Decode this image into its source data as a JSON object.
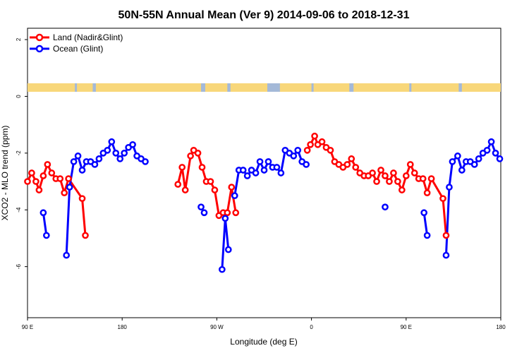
{
  "chart_data": {
    "type": "line",
    "title": "50N-55N Annual Mean (Ver 9)   2014-09-06 to 2018-12-31",
    "xlabel": "Longitude (deg E)",
    "ylabel": "XCO2 - MLO trend (ppm)",
    "x_tick_labels": [
      "90 E",
      "180",
      "90 W",
      "0",
      "90 E",
      "180"
    ],
    "x_tick_positions": [
      90,
      180,
      270,
      360,
      450,
      540
    ],
    "xlim": [
      90,
      540
    ],
    "y_ticks": [
      2,
      0,
      -2,
      -4,
      -6
    ],
    "y_tick_labels": [
      "2",
      "0",
      "-2",
      "-4",
      "-6"
    ],
    "ylim": [
      -7.8,
      2.4
    ],
    "grid": false,
    "legend_position": "top-left",
    "land_ocean_strip": {
      "land_color": "#F8D77A",
      "ocean_color": "#A4B9D8"
    },
    "series": [
      {
        "name": "Land (Nadir&Glint)",
        "color": "#ff0000",
        "segments": [
          [
            [
              90,
              -3.0
            ],
            [
              94,
              -2.7
            ],
            [
              98,
              -3.0
            ],
            [
              101,
              -3.3
            ],
            [
              105,
              -2.8
            ],
            [
              109,
              -2.4
            ],
            [
              113,
              -2.7
            ],
            [
              117,
              -2.9
            ],
            [
              121,
              -2.9
            ],
            [
              125,
              -3.4
            ],
            [
              129,
              -2.9
            ],
            [
              142,
              -3.6
            ],
            [
              145,
              -4.9
            ]
          ],
          [
            [
              233,
              -3.1
            ],
            [
              237,
              -2.5
            ],
            [
              240,
              -3.3
            ],
            [
              245,
              -2.1
            ],
            [
              248,
              -1.9
            ],
            [
              252,
              -2.0
            ],
            [
              256,
              -2.5
            ],
            [
              260,
              -3.0
            ],
            [
              264,
              -3.0
            ],
            [
              268,
              -3.3
            ],
            [
              272,
              -4.2
            ],
            [
              276,
              -4.1
            ],
            [
              280,
              -4.1
            ],
            [
              284,
              -3.2
            ],
            [
              288,
              -4.1
            ]
          ],
          [
            [
              356,
              -1.9
            ],
            [
              359,
              -1.7
            ],
            [
              363,
              -1.4
            ],
            [
              366,
              -1.7
            ],
            [
              370,
              -1.6
            ],
            [
              374,
              -1.8
            ],
            [
              378,
              -1.9
            ],
            [
              382,
              -2.3
            ],
            [
              386,
              -2.4
            ],
            [
              390,
              -2.5
            ],
            [
              394,
              -2.4
            ],
            [
              398,
              -2.2
            ],
            [
              402,
              -2.5
            ],
            [
              406,
              -2.7
            ],
            [
              410,
              -2.8
            ],
            [
              414,
              -2.8
            ],
            [
              418,
              -2.7
            ],
            [
              422,
              -3.0
            ],
            [
              426,
              -2.6
            ],
            [
              430,
              -2.8
            ],
            [
              434,
              -3.0
            ],
            [
              438,
              -2.7
            ],
            [
              442,
              -3.0
            ],
            [
              446,
              -3.3
            ],
            [
              450,
              -2.8
            ],
            [
              454,
              -2.4
            ],
            [
              458,
              -2.7
            ],
            [
              462,
              -2.9
            ],
            [
              466,
              -2.9
            ],
            [
              470,
              -3.4
            ],
            [
              474,
              -2.9
            ],
            [
              485,
              -3.6
            ],
            [
              488,
              -4.9
            ]
          ]
        ]
      },
      {
        "name": "Ocean (Glint)",
        "color": "#0000ff",
        "segments": [
          [
            [
              105,
              -4.1
            ],
            [
              108,
              -4.9
            ]
          ],
          [
            [
              127,
              -5.6
            ],
            [
              130,
              -3.2
            ],
            [
              134,
              -2.3
            ],
            [
              138,
              -2.1
            ],
            [
              142,
              -2.6
            ],
            [
              146,
              -2.3
            ],
            [
              150,
              -2.3
            ],
            [
              154,
              -2.4
            ],
            [
              158,
              -2.2
            ],
            [
              162,
              -2.0
            ],
            [
              166,
              -1.9
            ],
            [
              170,
              -1.6
            ],
            [
              174,
              -2.0
            ],
            [
              178,
              -2.2
            ],
            [
              182,
              -2.0
            ],
            [
              186,
              -1.8
            ],
            [
              190,
              -1.7
            ],
            [
              194,
              -2.1
            ],
            [
              198,
              -2.2
            ],
            [
              202,
              -2.3
            ]
          ],
          [
            [
              255,
              -3.9
            ],
            [
              258,
              -4.1
            ]
          ],
          [
            [
              275,
              -6.1
            ],
            [
              278,
              -4.3
            ],
            [
              281,
              -5.4
            ]
          ],
          [
            [
              287,
              -3.5
            ],
            [
              291,
              -2.6
            ],
            [
              295,
              -2.6
            ],
            [
              299,
              -2.8
            ],
            [
              303,
              -2.6
            ],
            [
              307,
              -2.7
            ],
            [
              311,
              -2.3
            ],
            [
              315,
              -2.6
            ],
            [
              319,
              -2.3
            ],
            [
              323,
              -2.5
            ],
            [
              327,
              -2.5
            ],
            [
              331,
              -2.7
            ],
            [
              335,
              -1.9
            ],
            [
              339,
              -2.0
            ],
            [
              343,
              -2.1
            ],
            [
              347,
              -1.9
            ],
            [
              351,
              -2.3
            ],
            [
              355,
              -2.4
            ]
          ],
          [
            [
              430,
              -3.9
            ]
          ],
          [
            [
              467,
              -4.1
            ],
            [
              470,
              -4.9
            ]
          ],
          [
            [
              488,
              -5.6
            ],
            [
              491,
              -3.2
            ],
            [
              494,
              -2.3
            ],
            [
              499,
              -2.1
            ],
            [
              503,
              -2.6
            ],
            [
              507,
              -2.3
            ],
            [
              511,
              -2.3
            ],
            [
              515,
              -2.4
            ],
            [
              519,
              -2.2
            ],
            [
              523,
              -2.0
            ],
            [
              527,
              -1.9
            ],
            [
              531,
              -1.6
            ],
            [
              535,
              -2.0
            ],
            [
              539,
              -2.2
            ]
          ]
        ]
      }
    ]
  }
}
